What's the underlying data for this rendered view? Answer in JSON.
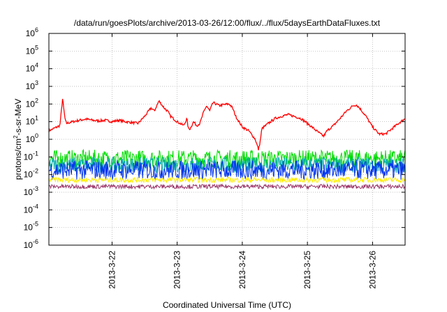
{
  "chart_data": {
    "type": "line",
    "title": "/data/run/goesPlots/archive/2013-03-26/12:00/flux/../flux/5daysEarthDataFluxes.txt",
    "xlabel": "Coordinated Universal Time (UTC)",
    "ylabel_parts": {
      "base": "protons/cm",
      "sup": "2",
      "rest": "-s-sr-MeV"
    },
    "y_scale": "log",
    "ylim": [
      1e-06,
      1000000.0
    ],
    "y_ticks": [
      {
        "base": "10",
        "exp": "6",
        "value": 1000000.0
      },
      {
        "base": "10",
        "exp": "5",
        "value": 100000.0
      },
      {
        "base": "10",
        "exp": "4",
        "value": 10000.0
      },
      {
        "base": "10",
        "exp": "3",
        "value": 1000.0
      },
      {
        "base": "10",
        "exp": "2",
        "value": 100.0
      },
      {
        "base": "10",
        "exp": "1",
        "value": 10.0
      },
      {
        "base": "10",
        "exp": "0",
        "value": 1.0
      },
      {
        "base": "10",
        "exp": "-1",
        "value": 0.1
      },
      {
        "base": "10",
        "exp": "-2",
        "value": 0.01
      },
      {
        "base": "10",
        "exp": "-3",
        "value": 0.001
      },
      {
        "base": "10",
        "exp": "-4",
        "value": 0.0001
      },
      {
        "base": "10",
        "exp": "-5",
        "value": 1e-05
      },
      {
        "base": "10",
        "exp": "-6",
        "value": 1e-06
      }
    ],
    "x_ticks": [
      "2013-3-22",
      "2013-3-23",
      "2013-3-24",
      "2013-3-25",
      "2013-3-26"
    ],
    "x_tick_days": [
      22,
      23,
      24,
      25,
      26
    ],
    "xlim_days": [
      21.03,
      26.5
    ],
    "grid": true,
    "series": [
      {
        "color": "#ff0000",
        "noise": 0.07,
        "points": [
          [
            21.03,
            3
          ],
          [
            21.1,
            4
          ],
          [
            21.2,
            6
          ],
          [
            21.24,
            200
          ],
          [
            21.28,
            12
          ],
          [
            21.3,
            8
          ],
          [
            21.4,
            10
          ],
          [
            21.5,
            12
          ],
          [
            21.6,
            14
          ],
          [
            21.7,
            12
          ],
          [
            21.8,
            11
          ],
          [
            21.9,
            12
          ],
          [
            22.0,
            10
          ],
          [
            22.1,
            12
          ],
          [
            22.2,
            10
          ],
          [
            22.3,
            9
          ],
          [
            22.4,
            8
          ],
          [
            22.5,
            20
          ],
          [
            22.6,
            60
          ],
          [
            22.65,
            40
          ],
          [
            22.72,
            150
          ],
          [
            22.8,
            60
          ],
          [
            22.85,
            40
          ],
          [
            22.9,
            20
          ],
          [
            23.0,
            10
          ],
          [
            23.1,
            6
          ],
          [
            23.15,
            15
          ],
          [
            23.17,
            4
          ],
          [
            23.2,
            4
          ],
          [
            23.25,
            10
          ],
          [
            23.3,
            6
          ],
          [
            23.35,
            8
          ],
          [
            23.4,
            30
          ],
          [
            23.45,
            80
          ],
          [
            23.5,
            40
          ],
          [
            23.55,
            120
          ],
          [
            23.6,
            100
          ],
          [
            23.65,
            80
          ],
          [
            23.7,
            90
          ],
          [
            23.8,
            100
          ],
          [
            23.85,
            60
          ],
          [
            23.9,
            20
          ],
          [
            24.0,
            5
          ],
          [
            24.1,
            3
          ],
          [
            24.2,
            1
          ],
          [
            24.25,
            0.25
          ],
          [
            24.28,
            1
          ],
          [
            24.3,
            4
          ],
          [
            24.4,
            8
          ],
          [
            24.5,
            15
          ],
          [
            24.6,
            20
          ],
          [
            24.7,
            25
          ],
          [
            24.8,
            20
          ],
          [
            24.9,
            15
          ],
          [
            25.0,
            8
          ],
          [
            25.1,
            4
          ],
          [
            25.2,
            2
          ],
          [
            25.25,
            1.5
          ],
          [
            25.3,
            3
          ],
          [
            25.4,
            6
          ],
          [
            25.5,
            15
          ],
          [
            25.6,
            40
          ],
          [
            25.7,
            80
          ],
          [
            25.75,
            90
          ],
          [
            25.8,
            60
          ],
          [
            25.9,
            20
          ],
          [
            26.0,
            5
          ],
          [
            26.1,
            2
          ],
          [
            26.2,
            2
          ],
          [
            26.3,
            4
          ],
          [
            26.4,
            8
          ],
          [
            26.5,
            15
          ]
        ]
      },
      {
        "color": "#00dd00",
        "base": 0.08,
        "amp": 0.5
      },
      {
        "color": "#00aaaa",
        "base": 0.035,
        "amp": 0.45
      },
      {
        "color": "#0033ee",
        "base": 0.018,
        "amp": 0.55
      },
      {
        "color": "#ffee00",
        "base": 0.005,
        "amp": 0.15
      },
      {
        "color": "#993366",
        "base": 0.0021,
        "amp": 0.12
      }
    ]
  }
}
